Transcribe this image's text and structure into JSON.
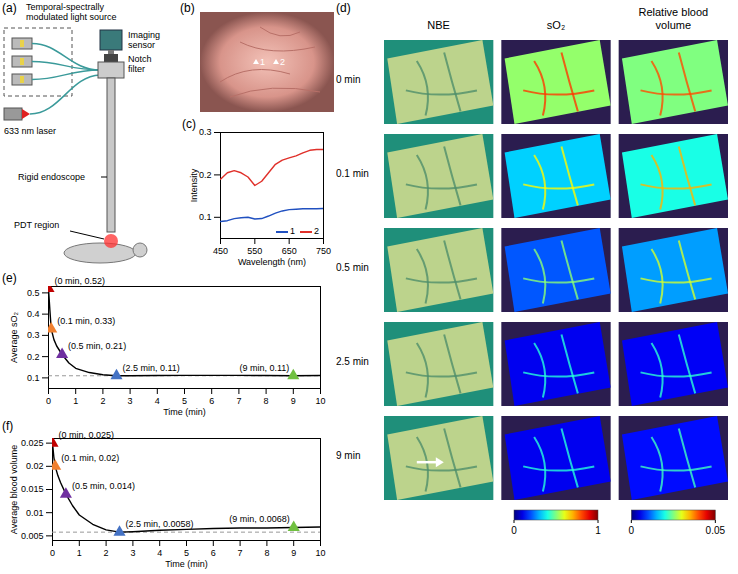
{
  "panel_letters": [
    "(a)",
    "(b)",
    "(c)",
    "(d)",
    "(e)",
    "(f)"
  ],
  "schematic": {
    "light_source": "Temporal-spectrally modulated light source",
    "sensor": "Imaging sensor",
    "filter": "Notch filter",
    "laser": "633 nm laser",
    "endoscope": "Rigid endoscope",
    "target": "PDT region"
  },
  "photo": {
    "points": [
      "1",
      "2"
    ]
  },
  "maps": {
    "columns": [
      "NBE",
      "sO₂",
      "Relative blood volume"
    ],
    "rows": [
      "0 min",
      "0.1 min",
      "0.5 min",
      "2.5 min",
      "9 min"
    ],
    "colorbars": [
      {
        "column": "sO₂",
        "range": [
          0,
          1
        ],
        "ticks": [
          0,
          1
        ]
      },
      {
        "column": "Relative blood volume",
        "range": [
          0,
          0.05
        ],
        "ticks": [
          0,
          0.05
        ]
      }
    ]
  },
  "chart_data": [
    {
      "type": "line",
      "xlabel": "Wavelength (nm)",
      "ylabel": "Intensity",
      "x": [
        450,
        470,
        490,
        510,
        530,
        550,
        570,
        590,
        610,
        630,
        650,
        670,
        690,
        710,
        730,
        750
      ],
      "series": [
        {
          "name": "1",
          "color": "#2050c0",
          "values": [
            0.09,
            0.092,
            0.097,
            0.099,
            0.1,
            0.096,
            0.097,
            0.103,
            0.11,
            0.115,
            0.118,
            0.119,
            0.12,
            0.12,
            0.12,
            0.121
          ]
        },
        {
          "name": "2",
          "color": "#e0302a",
          "values": [
            0.19,
            0.205,
            0.21,
            0.205,
            0.195,
            0.175,
            0.185,
            0.205,
            0.225,
            0.235,
            0.24,
            0.245,
            0.252,
            0.258,
            0.26,
            0.26
          ]
        }
      ],
      "xlim": [
        450,
        750
      ],
      "xticks": [
        450,
        550,
        650,
        750
      ],
      "ylim": [
        0.05,
        0.3
      ],
      "yticks": [
        0.1,
        0.2,
        0.3
      ],
      "legend": "bottom-right"
    },
    {
      "type": "line",
      "xlabel": "Time (min)",
      "ylabel": "Average sO₂",
      "x": [
        0,
        0.05,
        0.1,
        0.2,
        0.3,
        0.5,
        0.75,
        1,
        1.5,
        2,
        2.5,
        3,
        4,
        5,
        6,
        7,
        8,
        9,
        10
      ],
      "series": [
        {
          "color": "#000000",
          "values": [
            0.52,
            0.42,
            0.33,
            0.28,
            0.25,
            0.21,
            0.17,
            0.145,
            0.125,
            0.115,
            0.11,
            0.11,
            0.111,
            0.112,
            0.112,
            0.112,
            0.111,
            0.11,
            0.111
          ]
        }
      ],
      "xlim": [
        0,
        10
      ],
      "xticks": [
        0,
        1,
        2,
        3,
        4,
        5,
        6,
        7,
        8,
        9,
        10
      ],
      "ylim": [
        0.05,
        0.53
      ],
      "yticks": [
        0.1,
        0.2,
        0.3,
        0.4,
        0.5
      ],
      "marker": "triangle",
      "annotations": [
        {
          "x": 0,
          "y": 0.52,
          "label": "(0 min, 0.52)",
          "color": "#c00000"
        },
        {
          "x": 0.1,
          "y": 0.33,
          "label": "(0.1 min, 0.33)",
          "color": "#f08030"
        },
        {
          "x": 0.5,
          "y": 0.21,
          "label": "(0.5 min, 0.21)",
          "color": "#7030a0"
        },
        {
          "x": 2.5,
          "y": 0.11,
          "label": "(2.5 min, 0.11)",
          "color": "#4472c4"
        },
        {
          "x": 9,
          "y": 0.11,
          "label": "(9 min, 0.11)",
          "color": "#70c040"
        }
      ],
      "reference": {
        "value": 0.11,
        "line_style": "dashed",
        "color": "#999999"
      }
    },
    {
      "type": "line",
      "xlabel": "Time (min)",
      "ylabel": "Average blood volume",
      "x": [
        0,
        0.05,
        0.1,
        0.2,
        0.3,
        0.5,
        0.75,
        1,
        1.5,
        2,
        2.5,
        3,
        4,
        5,
        6,
        7,
        8,
        9,
        10
      ],
      "series": [
        {
          "color": "#000000",
          "values": [
            0.025,
            0.022,
            0.02,
            0.018,
            0.0165,
            0.014,
            0.0115,
            0.0095,
            0.0075,
            0.0063,
            0.0058,
            0.0059,
            0.0062,
            0.0064,
            0.0066,
            0.0067,
            0.0067,
            0.0068,
            0.0069
          ]
        }
      ],
      "xlim": [
        0,
        10
      ],
      "xticks": [
        0,
        1,
        2,
        3,
        4,
        5,
        6,
        7,
        8,
        9,
        10
      ],
      "ylim": [
        0.004,
        0.026
      ],
      "yticks": [
        0.005,
        0.01,
        0.015,
        0.02,
        0.025
      ],
      "marker": "triangle",
      "annotations": [
        {
          "x": 0,
          "y": 0.025,
          "label": "(0 min, 0.025)",
          "color": "#c00000"
        },
        {
          "x": 0.1,
          "y": 0.02,
          "label": "(0.1 min, 0.02)",
          "color": "#f08030"
        },
        {
          "x": 0.5,
          "y": 0.014,
          "label": "(0.5 min, 0.014)",
          "color": "#7030a0"
        },
        {
          "x": 2.5,
          "y": 0.0058,
          "label": "(2.5 min, 0.0058)",
          "color": "#4472c4"
        },
        {
          "x": 9,
          "y": 0.0068,
          "label": "(9 min, 0.0068)",
          "color": "#70c040"
        }
      ],
      "reference": {
        "value": 0.0058,
        "line_style": "dashed",
        "color": "#999999"
      }
    }
  ]
}
